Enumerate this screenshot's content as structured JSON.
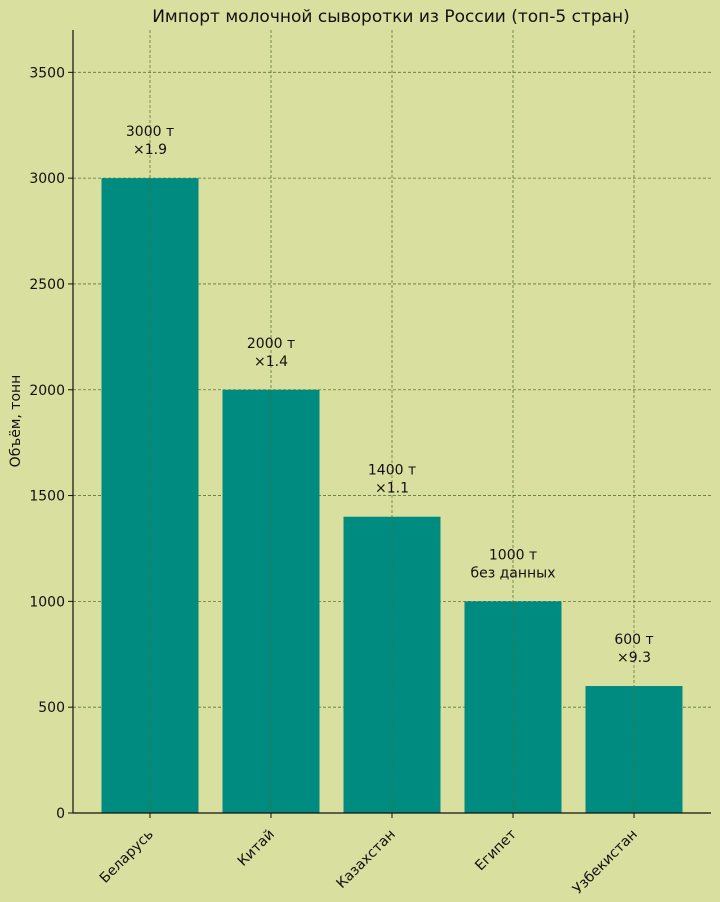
{
  "chart_data": {
    "type": "bar",
    "title": "Импорт молочной сыворотки из России (топ-5 стран)",
    "xlabel": "",
    "ylabel": "Объём, тонн",
    "categories": [
      "Беларусь",
      "Китай",
      "Казахстан",
      "Египет",
      "Узбекистан"
    ],
    "values": [
      3000,
      2000,
      1400,
      1000,
      600
    ],
    "value_labels": [
      "3000 т",
      "2000 т",
      "1400 т",
      "1000 т",
      "600 т"
    ],
    "growth_labels": [
      "×1.9",
      "×1.4",
      "×1.1",
      "без данных",
      "×9.3"
    ],
    "ylim": [
      0,
      3700
    ],
    "yticks": [
      0,
      500,
      1000,
      1500,
      2000,
      2500,
      3000,
      3500
    ],
    "grid": true,
    "colors": {
      "bar": "#008b80",
      "background": "#d9df9e",
      "grid": "#4f6b33"
    }
  }
}
